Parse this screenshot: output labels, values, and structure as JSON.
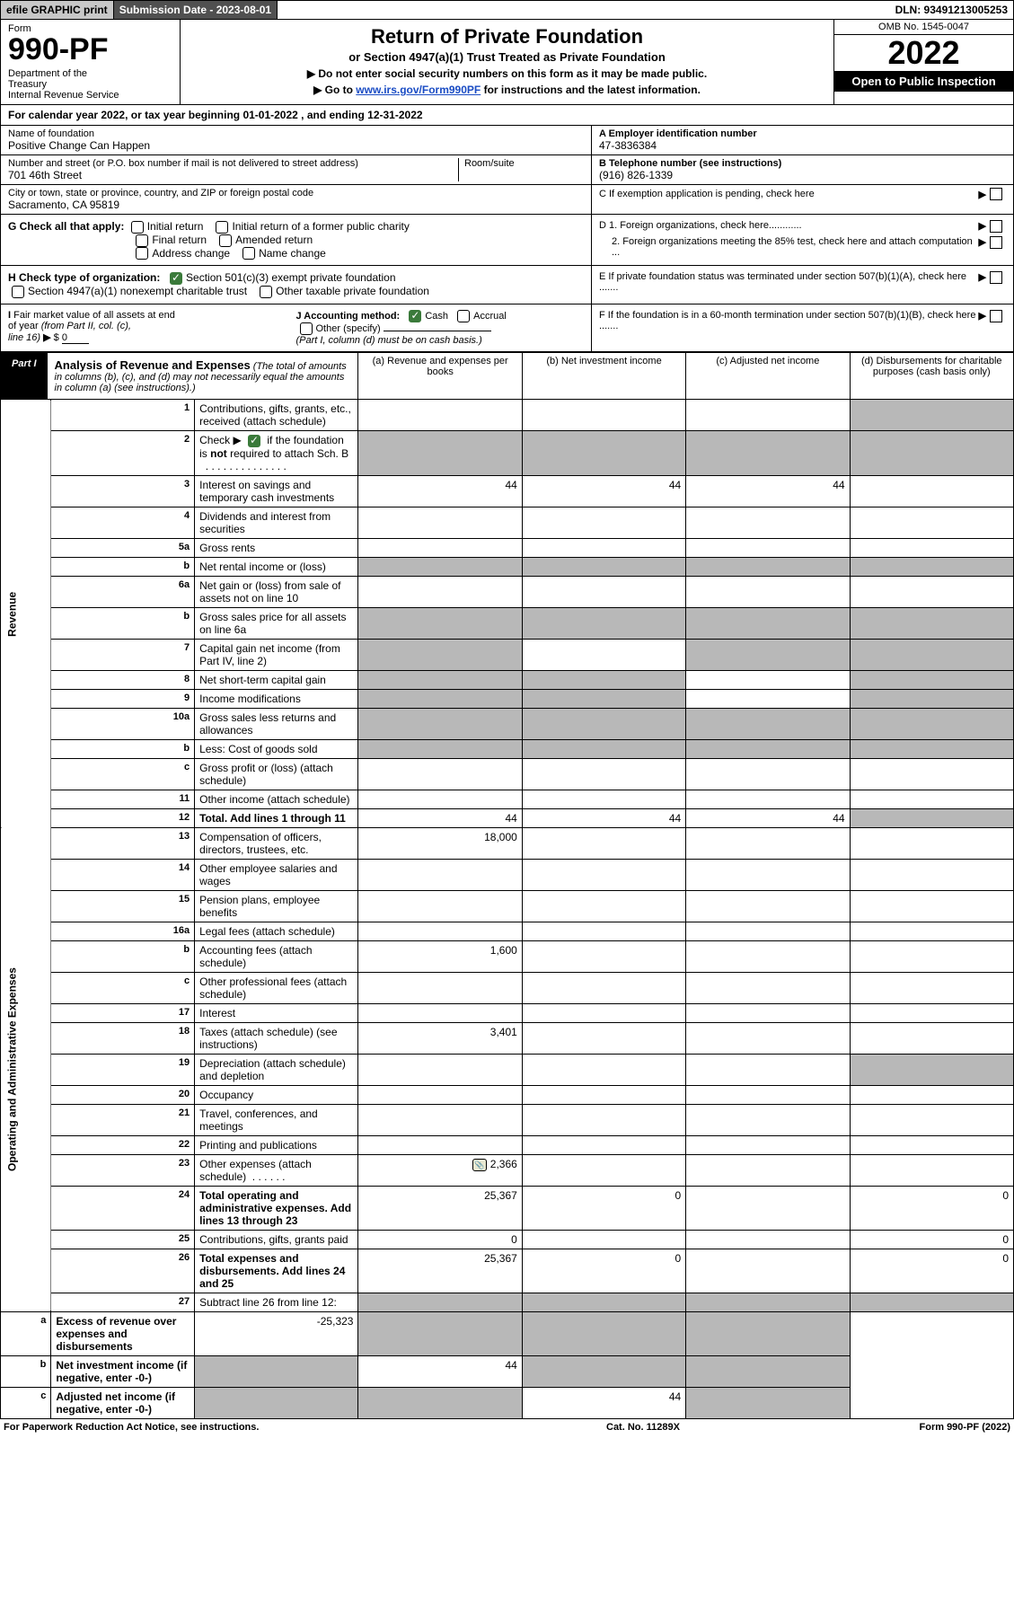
{
  "topbar": {
    "efile": "efile GRAPHIC print",
    "subdate": "Submission Date - 2023-08-01",
    "dln": "DLN: 93491213005253"
  },
  "header": {
    "form_label": "Form",
    "form_no": "990-PF",
    "dept": "Department of the Treasury\nInternal Revenue Service",
    "title": "Return of Private Foundation",
    "subtitle": "or Section 4947(a)(1) Trust Treated as Private Foundation",
    "instr1": "▶ Do not enter social security numbers on this form as it may be made public.",
    "instr2_pre": "▶ Go to ",
    "instr2_link": "www.irs.gov/Form990PF",
    "instr2_post": " for instructions and the latest information.",
    "omb": "OMB No. 1545-0047",
    "year": "2022",
    "open": "Open to Public Inspection"
  },
  "cal": "For calendar year 2022, or tax year beginning 01-01-2022                           , and ending 12-31-2022",
  "info": {
    "name_lbl": "Name of foundation",
    "name_val": "Positive Change Can Happen",
    "addr_lbl": "Number and street (or P.O. box number if mail is not delivered to street address)",
    "addr_val": "701 46th Street",
    "room_lbl": "Room/suite",
    "city_lbl": "City or town, state or province, country, and ZIP or foreign postal code",
    "city_val": "Sacramento, CA  95819",
    "a_lbl": "A Employer identification number",
    "a_val": "47-3836384",
    "b_lbl": "B Telephone number (see instructions)",
    "b_val": "(916) 826-1339",
    "c_lbl": "C If exemption application is pending, check here"
  },
  "g": {
    "label": "G Check all that apply:",
    "opts": [
      "Initial return",
      "Initial return of a former public charity",
      "Final return",
      "Amended return",
      "Address change",
      "Name change"
    ],
    "d1": "D 1. Foreign organizations, check here............",
    "d2": "2. Foreign organizations meeting the 85% test, check here and attach computation ..."
  },
  "h": {
    "label": "H Check type of organization:",
    "opt1": "Section 501(c)(3) exempt private foundation",
    "opt2": "Section 4947(a)(1) nonexempt charitable trust",
    "opt3": "Other taxable private foundation",
    "e": "E If private foundation status was terminated under section 507(b)(1)(A), check here ......."
  },
  "i": {
    "label": "I Fair market value of all assets at end of year (from Part II, col. (c), line 16) ▶ $",
    "val": "0",
    "j_label": "J Accounting method:",
    "j_cash": "Cash",
    "j_accr": "Accrual",
    "j_other": "Other (specify)",
    "j_note": "(Part I, column (d) must be on cash basis.)",
    "f": "F If the foundation is in a 60-month termination under section 507(b)(1)(B), check here ......."
  },
  "part1": {
    "lbl": "Part I",
    "title": "Analysis of Revenue and Expenses",
    "note": "(The total of amounts in columns (b), (c), and (d) may not necessarily equal the amounts in column (a) (see instructions).)",
    "cols": [
      "(a) Revenue and expenses per books",
      "(b) Net investment income",
      "(c) Adjusted net income",
      "(d) Disbursements for charitable purposes (cash basis only)"
    ]
  },
  "side": {
    "rev": "Revenue",
    "exp": "Operating and Administrative Expenses"
  },
  "rows": [
    {
      "n": "1",
      "d": "Contributions, gifts, grants, etc., received (attach schedule)"
    },
    {
      "n": "2",
      "d": "Check ▶      if the foundation is not required to attach Sch. B",
      "chk": true
    },
    {
      "n": "3",
      "d": "Interest on savings and temporary cash investments",
      "a": "44",
      "b": "44",
      "c": "44"
    },
    {
      "n": "4",
      "d": "Dividends and interest from securities"
    },
    {
      "n": "5a",
      "d": "Gross rents"
    },
    {
      "n": "b",
      "d": "Net rental income or (loss)"
    },
    {
      "n": "6a",
      "d": "Net gain or (loss) from sale of assets not on line 10"
    },
    {
      "n": "b",
      "d": "Gross sales price for all assets on line 6a"
    },
    {
      "n": "7",
      "d": "Capital gain net income (from Part IV, line 2)"
    },
    {
      "n": "8",
      "d": "Net short-term capital gain"
    },
    {
      "n": "9",
      "d": "Income modifications"
    },
    {
      "n": "10a",
      "d": "Gross sales less returns and allowances"
    },
    {
      "n": "b",
      "d": "Less: Cost of goods sold"
    },
    {
      "n": "c",
      "d": "Gross profit or (loss) (attach schedule)"
    },
    {
      "n": "11",
      "d": "Other income (attach schedule)"
    },
    {
      "n": "12",
      "d": "Total. Add lines 1 through 11",
      "bold": true,
      "a": "44",
      "b": "44",
      "c": "44"
    },
    {
      "n": "13",
      "d": "Compensation of officers, directors, trustees, etc.",
      "a": "18,000"
    },
    {
      "n": "14",
      "d": "Other employee salaries and wages"
    },
    {
      "n": "15",
      "d": "Pension plans, employee benefits"
    },
    {
      "n": "16a",
      "d": "Legal fees (attach schedule)"
    },
    {
      "n": "b",
      "d": "Accounting fees (attach schedule)",
      "a": "1,600"
    },
    {
      "n": "c",
      "d": "Other professional fees (attach schedule)"
    },
    {
      "n": "17",
      "d": "Interest"
    },
    {
      "n": "18",
      "d": "Taxes (attach schedule) (see instructions)",
      "a": "3,401"
    },
    {
      "n": "19",
      "d": "Depreciation (attach schedule) and depletion"
    },
    {
      "n": "20",
      "d": "Occupancy"
    },
    {
      "n": "21",
      "d": "Travel, conferences, and meetings"
    },
    {
      "n": "22",
      "d": "Printing and publications"
    },
    {
      "n": "23",
      "d": "Other expenses (attach schedule)",
      "icon": true,
      "a": "2,366"
    },
    {
      "n": "24",
      "d": "Total operating and administrative expenses. Add lines 13 through 23",
      "bold": true,
      "a": "25,367",
      "b": "0",
      "dcol": "0"
    },
    {
      "n": "25",
      "d": "Contributions, gifts, grants paid",
      "a": "0",
      "dcol": "0"
    },
    {
      "n": "26",
      "d": "Total expenses and disbursements. Add lines 24 and 25",
      "bold": true,
      "a": "25,367",
      "b": "0",
      "dcol": "0"
    },
    {
      "n": "27",
      "d": "Subtract line 26 from line 12:"
    },
    {
      "n": "a",
      "d": "Excess of revenue over expenses and disbursements",
      "bold": true,
      "a": "-25,323"
    },
    {
      "n": "b",
      "d": "Net investment income (if negative, enter -0-)",
      "bold": true,
      "b": "44"
    },
    {
      "n": "c",
      "d": "Adjusted net income (if negative, enter -0-)",
      "bold": true,
      "c": "44"
    }
  ],
  "shading": {
    "1": {
      "d": true
    },
    "2": {
      "a": true,
      "b": true,
      "c": true,
      "d": true
    },
    "5b": {
      "a": true,
      "b": true,
      "c": true,
      "d": true
    },
    "6a_b": {
      "a": true,
      "b": true,
      "c": true,
      "d": true
    },
    "7": {
      "a": true,
      "c": true,
      "d": true
    },
    "8": {
      "a": true,
      "b": true,
      "d": true
    },
    "9": {
      "a": true,
      "b": true,
      "d": true
    },
    "10a": {
      "a": true,
      "b": true,
      "c": true,
      "d": true
    },
    "10b": {
      "a": true,
      "b": true,
      "c": true,
      "d": true
    },
    "12": {
      "d": true
    },
    "19": {
      "d": true
    },
    "27": {
      "a": true,
      "b": true,
      "c": true,
      "d": true
    },
    "27a": {
      "b": true,
      "c": true,
      "d": true
    },
    "27b": {
      "a": true,
      "c": true,
      "d": true
    },
    "27c": {
      "a": true,
      "b": true,
      "d": true
    }
  },
  "footer": {
    "left": "For Paperwork Reduction Act Notice, see instructions.",
    "mid": "Cat. No. 11289X",
    "right": "Form 990-PF (2022)"
  }
}
